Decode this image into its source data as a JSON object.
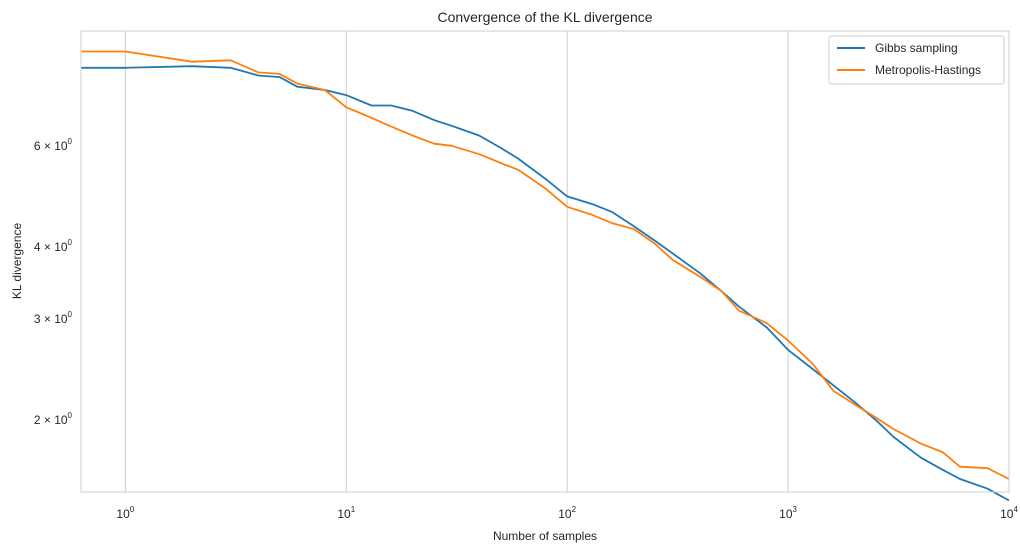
{
  "chart_data": {
    "type": "line",
    "title": "Convergence of the KL divergence",
    "xlabel": "Number of samples",
    "ylabel": "KL divergence",
    "xscale": "log",
    "yscale": "log",
    "xlim": [
      0.63,
      10000
    ],
    "ylim": [
      1.5,
      9.5
    ],
    "grid": "vertical major gridlines",
    "legend_position": "top-right",
    "x_ticks": [
      {
        "base": "10",
        "exp": "0",
        "value": 1
      },
      {
        "base": "10",
        "exp": "1",
        "value": 10
      },
      {
        "base": "10",
        "exp": "2",
        "value": 100
      },
      {
        "base": "10",
        "exp": "3",
        "value": 1000
      },
      {
        "base": "10",
        "exp": "4",
        "value": 10000
      }
    ],
    "y_ticks": [
      {
        "base": "2 × 10",
        "exp": "0",
        "value": 2
      },
      {
        "base": "3 × 10",
        "exp": "0",
        "value": 3
      },
      {
        "base": "4 × 10",
        "exp": "0",
        "value": 4
      },
      {
        "base": "6 × 10",
        "exp": "0",
        "value": 6
      }
    ],
    "series": [
      {
        "name": "Gibbs sampling",
        "color": "#1f77b4",
        "x": [
          0.63,
          1,
          2,
          3,
          4,
          5,
          6,
          8,
          10,
          13,
          16,
          20,
          25,
          30,
          40,
          50,
          60,
          80,
          100,
          130,
          160,
          200,
          250,
          300,
          400,
          500,
          600,
          800,
          1000,
          1300,
          1600,
          2000,
          2500,
          3000,
          4000,
          5000,
          6000,
          8000,
          10000
        ],
        "y": [
          8.2,
          8.2,
          8.25,
          8.2,
          7.95,
          7.9,
          7.6,
          7.5,
          7.35,
          7.05,
          7.05,
          6.9,
          6.65,
          6.5,
          6.25,
          5.95,
          5.7,
          5.25,
          4.9,
          4.75,
          4.6,
          4.35,
          4.1,
          3.9,
          3.6,
          3.35,
          3.15,
          2.9,
          2.65,
          2.45,
          2.3,
          2.15,
          2.0,
          1.87,
          1.72,
          1.64,
          1.58,
          1.52,
          1.45
        ]
      },
      {
        "name": "Metropolis-Hastings",
        "color": "#ff7f0e",
        "x": [
          0.63,
          1,
          2,
          3,
          4,
          5,
          6,
          8,
          10,
          12,
          15,
          20,
          25,
          30,
          40,
          50,
          60,
          80,
          100,
          130,
          160,
          200,
          250,
          300,
          400,
          500,
          600,
          800,
          1000,
          1300,
          1600,
          2000,
          2500,
          3000,
          4000,
          5000,
          6000,
          8000,
          10000
        ],
        "y": [
          8.75,
          8.75,
          8.4,
          8.45,
          8.05,
          8.0,
          7.7,
          7.5,
          7.0,
          6.8,
          6.55,
          6.25,
          6.05,
          6.0,
          5.8,
          5.6,
          5.45,
          5.05,
          4.7,
          4.55,
          4.4,
          4.3,
          4.05,
          3.8,
          3.55,
          3.35,
          3.1,
          2.95,
          2.75,
          2.5,
          2.25,
          2.13,
          2.02,
          1.93,
          1.82,
          1.76,
          1.66,
          1.65,
          1.58
        ]
      }
    ]
  }
}
